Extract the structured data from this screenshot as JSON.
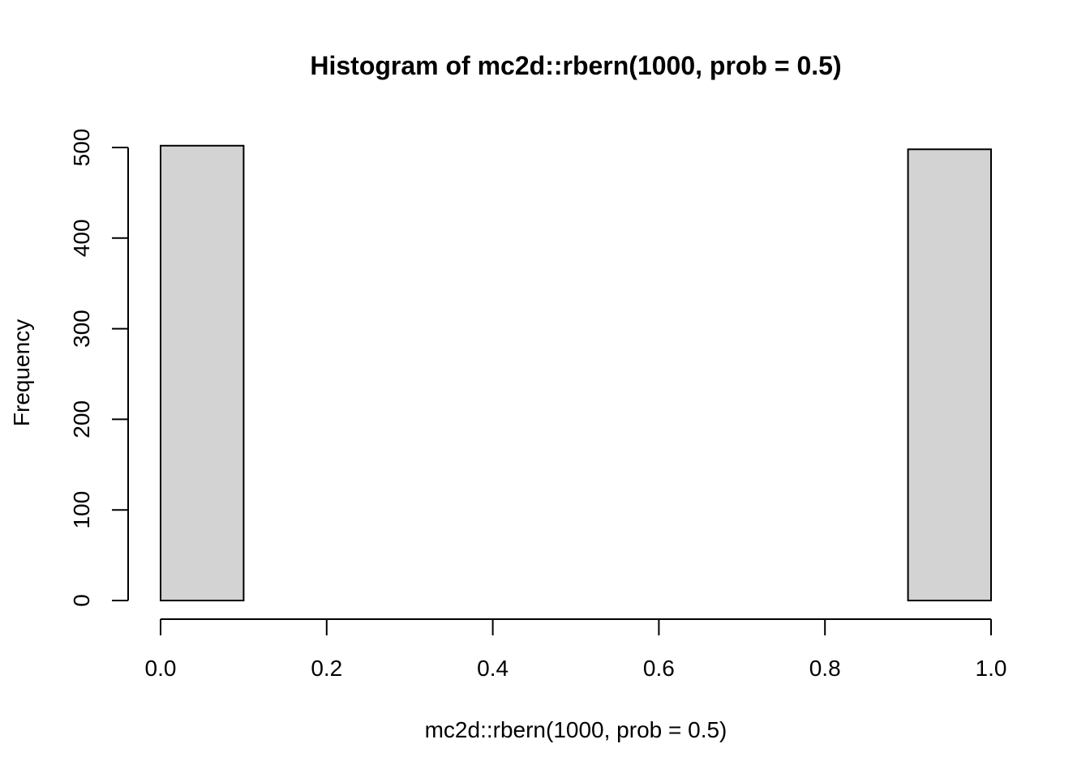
{
  "chart_data": {
    "type": "bar",
    "title": "Histogram of mc2d::rbern(1000, prob = 0.5)",
    "xlabel": "mc2d::rbern(1000, prob = 0.5)",
    "ylabel": "Frequency",
    "xlim": [
      0.0,
      1.0
    ],
    "ylim": [
      0,
      500
    ],
    "x_ticks": [
      "0.0",
      "0.2",
      "0.4",
      "0.6",
      "0.8",
      "1.0"
    ],
    "y_ticks": [
      "0",
      "100",
      "200",
      "300",
      "400",
      "500"
    ],
    "bins": [
      {
        "x0": 0.0,
        "x1": 0.1,
        "count": 502
      },
      {
        "x0": 0.1,
        "x1": 0.2,
        "count": 0
      },
      {
        "x0": 0.2,
        "x1": 0.3,
        "count": 0
      },
      {
        "x0": 0.3,
        "x1": 0.4,
        "count": 0
      },
      {
        "x0": 0.4,
        "x1": 0.5,
        "count": 0
      },
      {
        "x0": 0.5,
        "x1": 0.6,
        "count": 0
      },
      {
        "x0": 0.6,
        "x1": 0.7,
        "count": 0
      },
      {
        "x0": 0.7,
        "x1": 0.8,
        "count": 0
      },
      {
        "x0": 0.8,
        "x1": 0.9,
        "count": 0
      },
      {
        "x0": 0.9,
        "x1": 1.0,
        "count": 498
      }
    ],
    "bar_color": "#d3d3d3",
    "grid": false,
    "legend": false
  }
}
